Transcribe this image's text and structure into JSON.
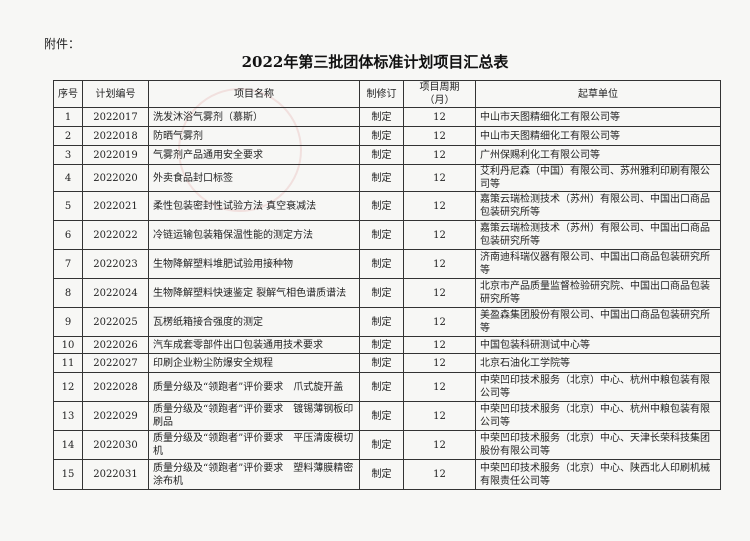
{
  "attachment_label": "附件：",
  "title": "2022年第三批团体标准计划项目汇总表",
  "table": {
    "headers": [
      "序号",
      "计划编号",
      "项目名称",
      "制修订",
      "项目周期（月）",
      "起草单位"
    ],
    "rows": [
      {
        "no": "1",
        "code": "2022017",
        "name": "洗发沐浴气雾剂（慕斯）",
        "type": "制定",
        "period": "12",
        "unit": "中山市天图精细化工有限公司等"
      },
      {
        "no": "2",
        "code": "2022018",
        "name": "防晒气雾剂",
        "type": "制定",
        "period": "12",
        "unit": "中山市天图精细化工有限公司等"
      },
      {
        "no": "3",
        "code": "2022019",
        "name": "气雾剂产品通用安全要求",
        "type": "制定",
        "period": "12",
        "unit": "广州保赐利化工有限公司等"
      },
      {
        "no": "4",
        "code": "2022020",
        "name": "外卖食品封口标签",
        "type": "制定",
        "period": "12",
        "unit": "艾利丹尼森（中国）有限公司、苏州雅利印刷有限公司等"
      },
      {
        "no": "5",
        "code": "2022021",
        "name": "柔性包装密封性试验方法 真空衰减法",
        "type": "制定",
        "period": "12",
        "unit": "嘉策云瑞检测技术（苏州）有限公司、中国出口商品包装研究所等"
      },
      {
        "no": "6",
        "code": "2022022",
        "name": "冷链运输包装箱保温性能的测定方法",
        "type": "制定",
        "period": "12",
        "unit": "嘉策云瑞检测技术（苏州）有限公司、中国出口商品包装研究所等"
      },
      {
        "no": "7",
        "code": "2022023",
        "name": "生物降解塑料堆肥试验用接种物",
        "type": "制定",
        "period": "12",
        "unit": "济南迪科瑞仪器有限公司、中国出口商品包装研究所等"
      },
      {
        "no": "8",
        "code": "2022024",
        "name": "生物降解塑料快速鉴定 裂解气相色谱质谱法",
        "type": "制定",
        "period": "12",
        "unit": "北京市产品质量监督检验研究院、中国出口商品包装研究所等"
      },
      {
        "no": "9",
        "code": "2022025",
        "name": "瓦楞纸箱接合强度的测定",
        "type": "制定",
        "period": "12",
        "unit": "美盈森集团股份有限公司、中国出口商品包装研究所等"
      },
      {
        "no": "10",
        "code": "2022026",
        "name": "汽车成套零部件出口包装通用技术要求",
        "type": "制定",
        "period": "12",
        "unit": "中国包装科研测试中心等"
      },
      {
        "no": "11",
        "code": "2022027",
        "name": "印刷企业粉尘防爆安全规程",
        "type": "制定",
        "period": "12",
        "unit": "北京石油化工学院等"
      },
      {
        "no": "12",
        "code": "2022028",
        "name": "质量分级及“领跑者”评价要求　爪式旋开盖",
        "type": "制定",
        "period": "12",
        "unit": "中荣凹印技术服务（北京）中心、杭州中粮包装有限公司等"
      },
      {
        "no": "13",
        "code": "2022029",
        "name": "质量分级及“领跑者”评价要求　镀锡薄钢板印刷品",
        "type": "制定",
        "period": "12",
        "unit": "中荣凹印技术服务（北京）中心、杭州中粮包装有限公司等"
      },
      {
        "no": "14",
        "code": "2022030",
        "name": "质量分级及“领跑者”评价要求　平压清废模切机",
        "type": "制定",
        "period": "12",
        "unit": "中荣凹印技术服务（北京）中心、天津长荣科技集团股份有限公司等"
      },
      {
        "no": "15",
        "code": "2022031",
        "name": "质量分级及“领跑者”评价要求　塑料薄膜精密涂布机",
        "type": "制定",
        "period": "12",
        "unit": "中荣凹印技术服务（北京）中心、陕西北人印刷机械有限责任公司等"
      }
    ]
  }
}
